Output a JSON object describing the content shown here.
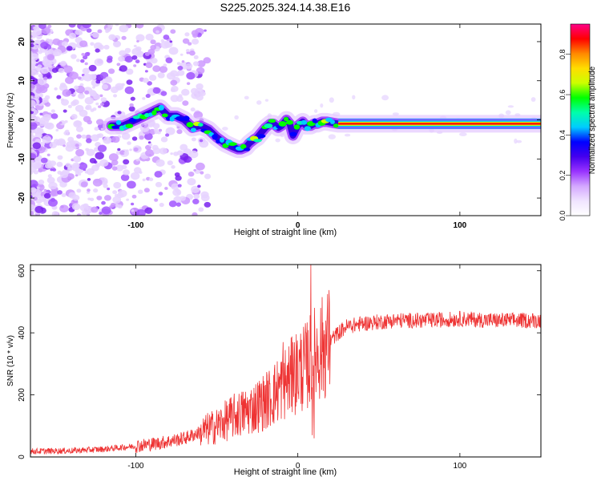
{
  "title": "S225.2025.324.14.38.E16",
  "chart_data": [
    {
      "type": "heatmap",
      "name": "spectrogram",
      "xlabel": "Height of straight line (km)",
      "ylabel": "Frequency (Hz)",
      "xlim": [
        -165,
        150
      ],
      "ylim": [
        -24.5,
        24.5
      ],
      "xticks": [
        -100,
        0,
        100
      ],
      "yticks": [
        -20,
        -10,
        0,
        10,
        20
      ],
      "ridge": {
        "x": [
          -115,
          -108,
          -100,
          -95,
          -90,
          -85,
          -80,
          -75,
          -70,
          -65,
          -60,
          -55,
          -50,
          -45,
          -40,
          -37,
          -35,
          -32,
          -30,
          -27,
          -25,
          -22,
          -20,
          -17,
          -15,
          -12,
          -10,
          -7,
          -5,
          -3,
          0,
          3,
          5,
          8,
          10,
          12,
          15,
          18,
          22,
          25,
          150
        ],
        "y": [
          -1.5,
          -1.5,
          0,
          1,
          2,
          3,
          1,
          1,
          0,
          -2,
          -1.5,
          -2.5,
          -4.5,
          -6,
          -7,
          -7.5,
          -7.5,
          -7,
          -6,
          -5,
          -4.5,
          -3,
          -2,
          -1,
          -1,
          -2,
          -1.5,
          0,
          -1,
          -4,
          -1.5,
          -0.5,
          -1.5,
          -1.5,
          -1,
          -1,
          -0.5,
          -0.5,
          -0.8,
          -1,
          -1
        ]
      },
      "colorbar": {
        "label": "Normalized spectral amplitude",
        "ticks": [
          "0.0",
          "0.2",
          "0.4",
          "0.6",
          "0.8"
        ],
        "range": [
          0,
          0.95
        ],
        "colors": [
          "#ffffff",
          "#f0e4ff",
          "#d4a8ff",
          "#9933ff",
          "#4400ee",
          "#0000ff",
          "#00ccff",
          "#00ffaa",
          "#00ff00",
          "#ccff00",
          "#ffdd00",
          "#ff8800",
          "#ff0000",
          "#ff0088"
        ]
      }
    },
    {
      "type": "line",
      "name": "snr",
      "xlabel": "Height of straight line (km)",
      "ylabel": "SNR (10 * v/v)",
      "xlim": [
        -165,
        150
      ],
      "ylim": [
        0,
        620
      ],
      "xticks": [
        -100,
        0,
        100
      ],
      "yticks": [
        0,
        200,
        400,
        600
      ],
      "color": "#ee3333",
      "trend": {
        "x": [
          -165,
          -140,
          -120,
          -100,
          -85,
          -70,
          -60,
          -50,
          -40,
          -30,
          -20,
          -15,
          -10,
          -5,
          0,
          5,
          10,
          15,
          20,
          25,
          30,
          40,
          60,
          80,
          100,
          120,
          150
        ],
        "y": [
          18,
          20,
          25,
          35,
          45,
          60,
          80,
          100,
          130,
          150,
          180,
          200,
          230,
          250,
          280,
          290,
          330,
          350,
          375,
          400,
          420,
          430,
          440,
          440,
          445,
          440,
          440
        ]
      },
      "spikes": [
        {
          "x": 8,
          "y": 620
        },
        {
          "x": -9,
          "y": 370
        },
        {
          "x": 9,
          "y": 70
        },
        {
          "x": -3,
          "y": 370
        },
        {
          "x": 10,
          "y": 60
        }
      ]
    }
  ]
}
